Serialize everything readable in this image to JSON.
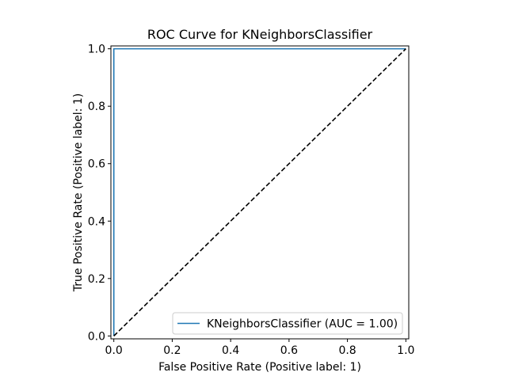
{
  "chart_data": {
    "type": "line",
    "title": "ROC Curve for KNeighborsClassifier",
    "xlabel": "False Positive Rate (Positive label: 1)",
    "ylabel": "True Positive Rate (Positive label: 1)",
    "xlim": [
      -0.01,
      1.01
    ],
    "ylim": [
      -0.01,
      1.01
    ],
    "xticks": [
      0.0,
      0.2,
      0.4,
      0.6,
      0.8,
      1.0
    ],
    "xtick_labels": [
      "0.0",
      "0.2",
      "0.4",
      "0.6",
      "0.8",
      "1.0"
    ],
    "yticks": [
      0.0,
      0.2,
      0.4,
      0.6,
      0.8,
      1.0
    ],
    "ytick_labels": [
      "0.0",
      "0.2",
      "0.4",
      "0.6",
      "0.8",
      "1.0"
    ],
    "grid": false,
    "legend_position": "lower-right",
    "series": [
      {
        "name": "KNeighborsClassifier (AUC = 1.00)",
        "color": "#1f77b4",
        "style": "solid",
        "x": [
          0.0,
          0.0,
          1.0
        ],
        "y": [
          0.0,
          1.0,
          1.0
        ]
      },
      {
        "color": "#000000",
        "style": "dashed",
        "x": [
          0.0,
          1.0
        ],
        "y": [
          0.0,
          1.0
        ]
      }
    ]
  }
}
